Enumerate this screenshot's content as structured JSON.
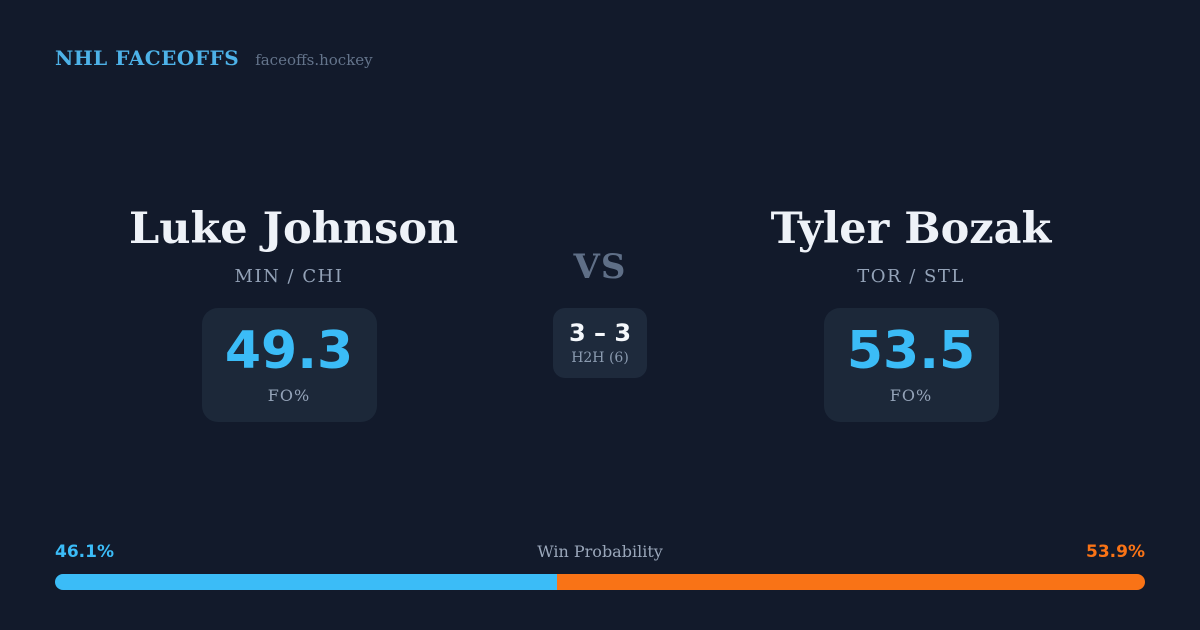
{
  "header": {
    "brand": "NHL FACEOFFS",
    "site": "faceoffs.hockey"
  },
  "matchup": {
    "left": {
      "name": "Luke Johnson",
      "teams": "MIN / CHI",
      "fo_pct": "49.3",
      "stat_label": "FO%"
    },
    "right": {
      "name": "Tyler Bozak",
      "teams": "TOR / STL",
      "fo_pct": "53.5",
      "stat_label": "FO%"
    },
    "vs_label": "VS",
    "h2h_score": "3 – 3",
    "h2h_label": "H2H (6)"
  },
  "win_probability": {
    "label": "Win Probability",
    "left_label": "46.1%",
    "right_label": "53.9%",
    "left_pct": 46.1,
    "right_pct": 53.9
  },
  "chart_data": {
    "type": "bar",
    "title": "Win Probability",
    "categories": [
      "Luke Johnson",
      "Tyler Bozak"
    ],
    "values": [
      46.1,
      53.9
    ],
    "unit": "%"
  },
  "colors": {
    "background": "#121a2b",
    "card": "#1c2839",
    "accent_blue": "#3bbcf7",
    "accent_orange": "#f97316",
    "brand_blue": "#4db2e8",
    "text_primary": "#eef2f8",
    "text_muted": "#94a3b8",
    "text_dim": "#64748b"
  }
}
